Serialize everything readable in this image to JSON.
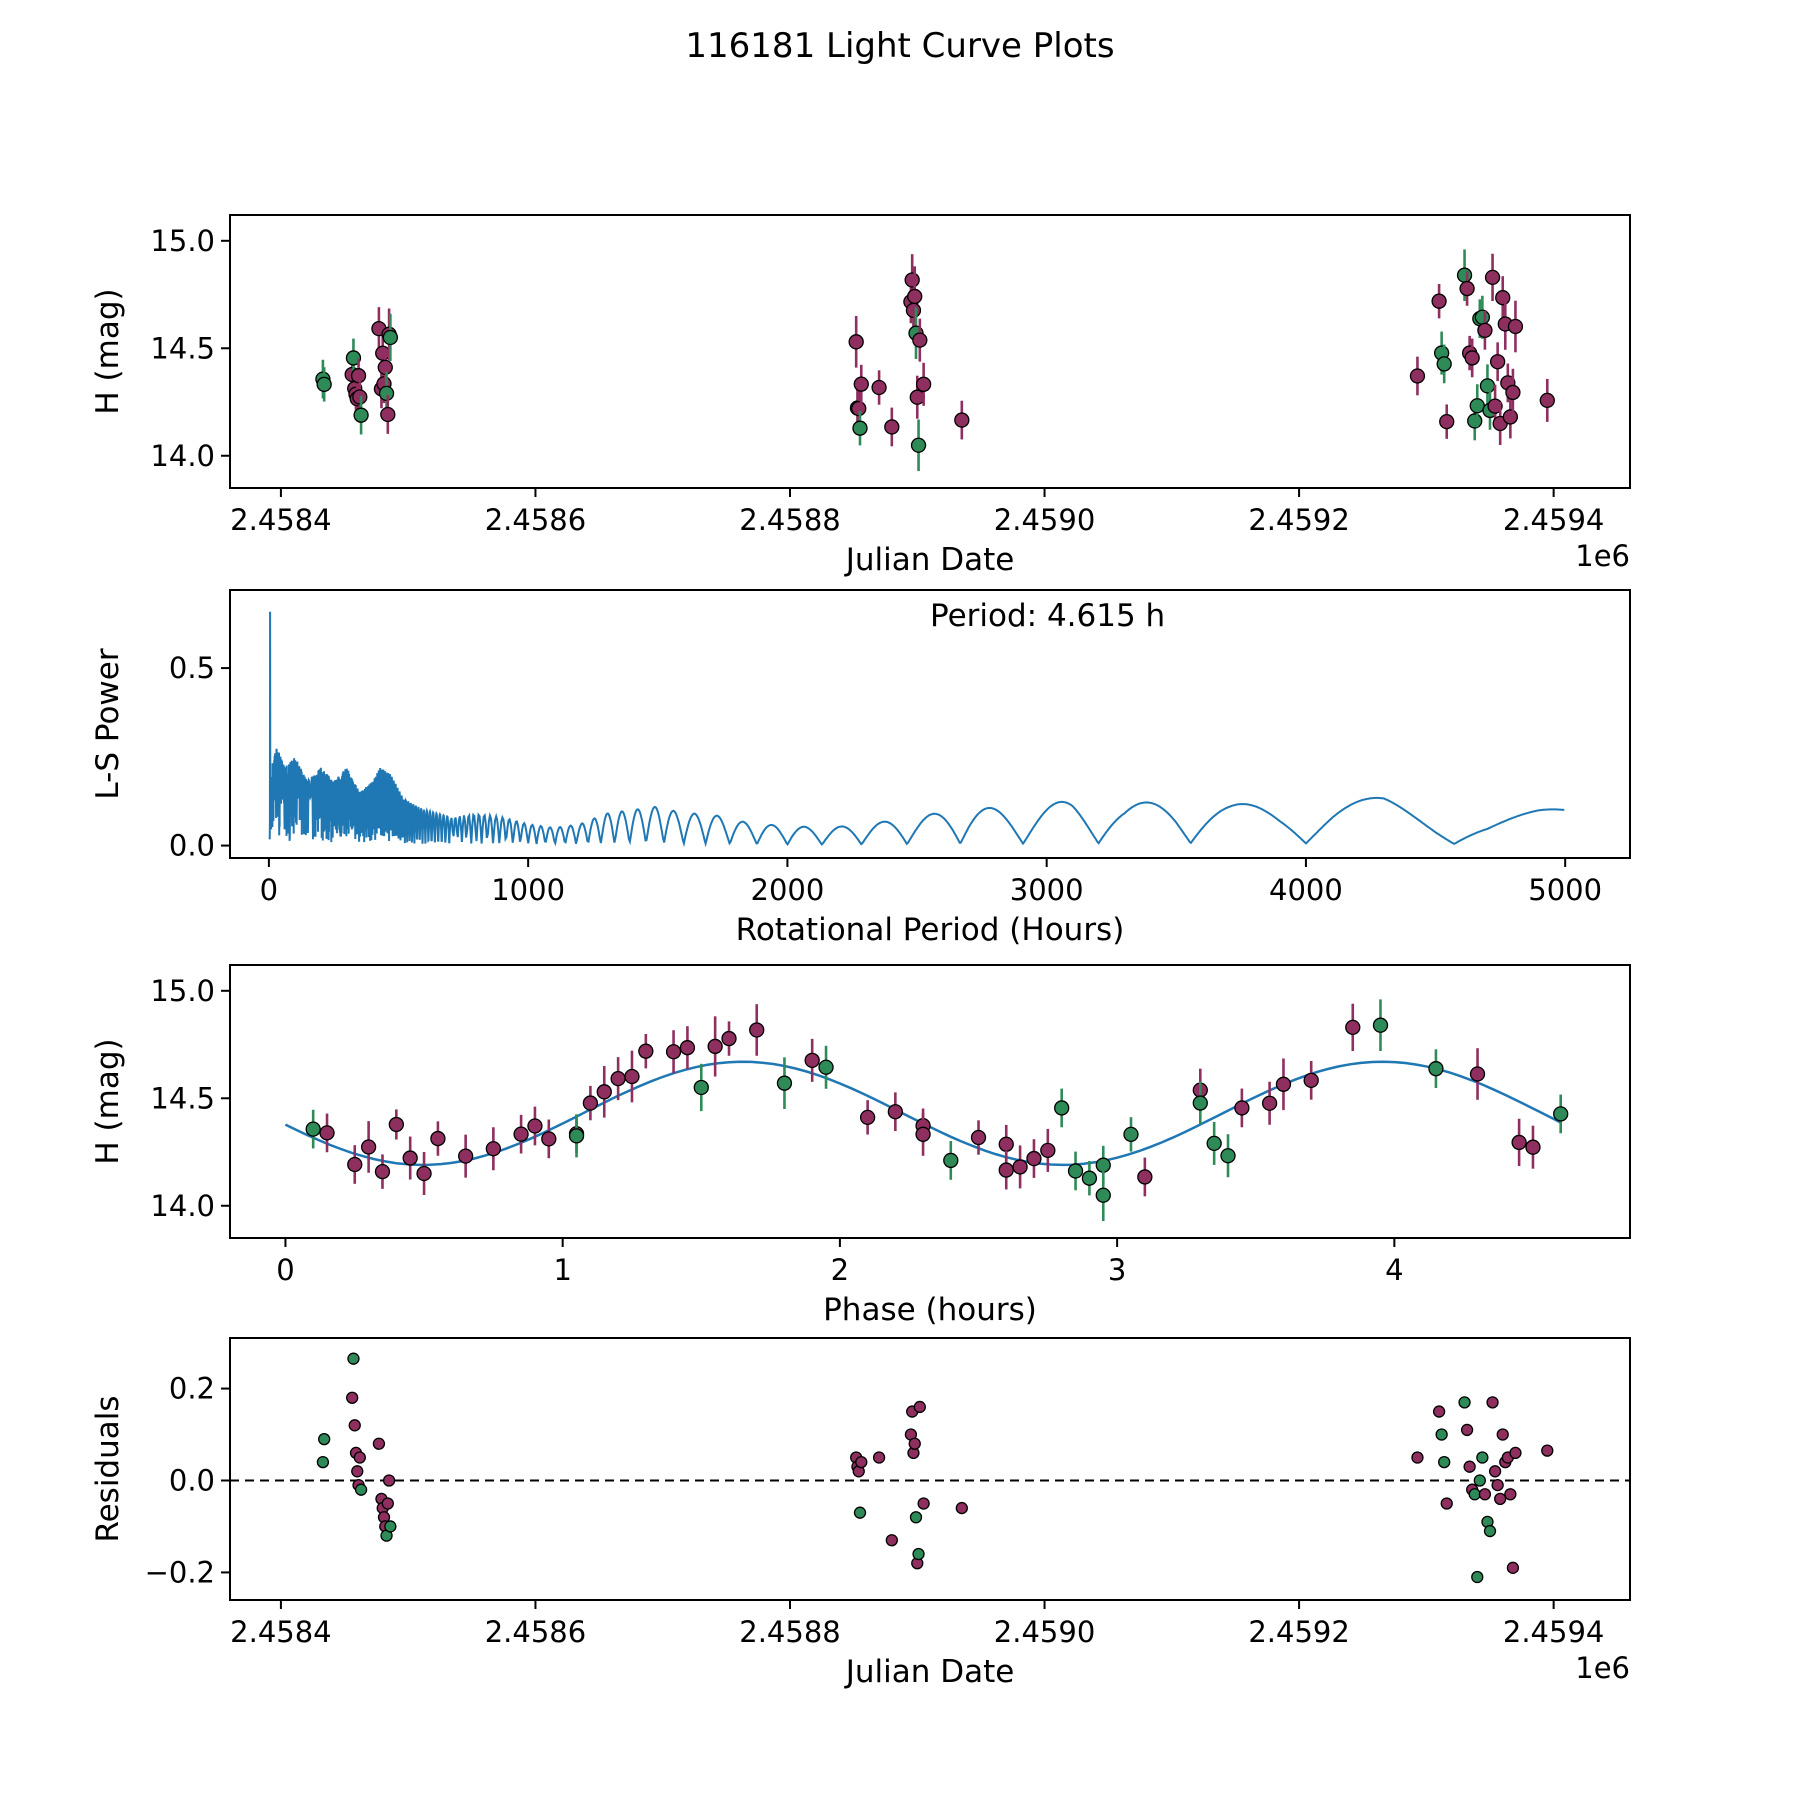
{
  "title": "116181 Light Curve Plots",
  "figure": {
    "colors": {
      "green": "#2e8b57",
      "maroon": "#8e2f5f",
      "line_blue": "#1f77b4",
      "marker_edge": "#000000",
      "axis": "#000000"
    }
  },
  "chart_data": [
    {
      "id": "lightcurve",
      "type": "scatter",
      "xlabel": "Julian Date",
      "ylabel": "H (mag)",
      "x_offset_label": "1e6",
      "xlim": [
        2458360,
        2459460
      ],
      "ylim": [
        13.85,
        15.12
      ],
      "xticks": {
        "values": [
          2458400,
          2458600,
          2458800,
          2459000,
          2459200,
          2459400
        ],
        "labels": [
          "2.4584",
          "2.4586",
          "2.4588",
          "2.4590",
          "2.4592",
          "2.4594"
        ]
      },
      "yticks": {
        "values": [
          14.0,
          14.5,
          15.0
        ],
        "labels": [
          "14.0",
          "14.5",
          "15.0"
        ]
      },
      "x_field": "jd",
      "y_field": "mag",
      "error_field": "err"
    },
    {
      "id": "periodogram",
      "type": "line",
      "xlabel": "Rotational Period (Hours)",
      "ylabel": "L-S Power",
      "annotation": "Period: 4.615 h",
      "xlim": [
        -150,
        5250
      ],
      "ylim": [
        -0.035,
        0.72
      ],
      "xticks": {
        "values": [
          0,
          1000,
          2000,
          3000,
          4000,
          5000
        ],
        "labels": [
          "0",
          "1000",
          "2000",
          "3000",
          "4000",
          "5000"
        ]
      },
      "yticks": {
        "values": [
          0.0,
          0.5
        ],
        "labels": [
          "0.0",
          "0.5"
        ]
      },
      "peak": {
        "period_hours": 4.615,
        "power": 0.67
      },
      "envelope": [
        [
          3,
          0.02
        ],
        [
          4,
          0.05
        ],
        [
          5,
          0.67
        ],
        [
          6,
          0.1
        ],
        [
          10,
          0.22
        ],
        [
          30,
          0.28
        ],
        [
          60,
          0.22
        ],
        [
          100,
          0.25
        ],
        [
          150,
          0.18
        ],
        [
          200,
          0.22
        ],
        [
          250,
          0.18
        ],
        [
          300,
          0.22
        ],
        [
          350,
          0.15
        ],
        [
          400,
          0.18
        ],
        [
          430,
          0.22
        ],
        [
          470,
          0.2
        ],
        [
          520,
          0.13
        ],
        [
          600,
          0.1
        ],
        [
          700,
          0.08
        ],
        [
          800,
          0.09
        ],
        [
          900,
          0.08
        ],
        [
          1000,
          0.06
        ],
        [
          1100,
          0.05
        ],
        [
          1200,
          0.06
        ],
        [
          1300,
          0.09
        ],
        [
          1400,
          0.1
        ],
        [
          1500,
          0.11
        ],
        [
          1600,
          0.09
        ],
        [
          1700,
          0.09
        ],
        [
          1800,
          0.07
        ],
        [
          1900,
          0.06
        ],
        [
          2000,
          0.055
        ],
        [
          2150,
          0.05
        ],
        [
          2300,
          0.06
        ],
        [
          2500,
          0.08
        ],
        [
          2700,
          0.11
        ],
        [
          2900,
          0.1
        ],
        [
          3100,
          0.13
        ],
        [
          3300,
          0.11
        ],
        [
          3500,
          0.14
        ],
        [
          3700,
          0.12
        ],
        [
          3900,
          0.11
        ],
        [
          4100,
          0.13
        ],
        [
          4300,
          0.135
        ],
        [
          4500,
          0.1
        ],
        [
          4700,
          0.08
        ],
        [
          4900,
          0.1
        ],
        [
          5000,
          0.105
        ]
      ],
      "oscillation": {
        "c": 16000,
        "phase": 0.0,
        "floor": 0.05
      }
    },
    {
      "id": "phase",
      "type": "scatter",
      "xlabel": "Phase (hours)",
      "ylabel": "H (mag)",
      "xlim": [
        -0.2,
        4.85
      ],
      "ylim": [
        13.85,
        15.12
      ],
      "xticks": {
        "values": [
          0,
          1,
          2,
          3,
          4
        ],
        "labels": [
          "0",
          "1",
          "2",
          "3",
          "4"
        ]
      },
      "yticks": {
        "values": [
          14.0,
          14.5,
          15.0
        ],
        "labels": [
          "14.0",
          "14.5",
          "15.0"
        ]
      },
      "x_field": "phase",
      "y_field": "mag",
      "error_field": "err",
      "fit": {
        "mean": 14.43,
        "amplitude": 0.24,
        "cycle_hours": 2.3075,
        "phase_at_mean_rising": 1.073,
        "period_hours": 4.615
      }
    },
    {
      "id": "residuals",
      "type": "scatter",
      "xlabel": "Julian Date",
      "ylabel": "Residuals",
      "x_offset_label": "1e6",
      "xlim": [
        2458360,
        2459460
      ],
      "ylim": [
        -0.26,
        0.31
      ],
      "xticks": {
        "values": [
          2458400,
          2458600,
          2458800,
          2459000,
          2459200,
          2459400
        ],
        "labels": [
          "2.4584",
          "2.4586",
          "2.4588",
          "2.4590",
          "2.4592",
          "2.4594"
        ]
      },
      "yticks": {
        "values": [
          -0.2,
          0.0,
          0.2
        ],
        "labels": [
          "−0.2",
          "0.0",
          "0.2"
        ]
      },
      "x_field": "jd",
      "y_field": "res",
      "zero_line": true
    }
  ],
  "observations": {
    "fields": [
      "jd",
      "phase_hours",
      "residual",
      "mag_error",
      "color_key"
    ],
    "color_map": {
      "g": "green",
      "m": "maroon"
    },
    "rows": [
      [
        2458433,
        0.1,
        0.04,
        0.09,
        "g"
      ],
      [
        2458434,
        3.05,
        0.09,
        0.08,
        "g"
      ],
      [
        2458456,
        0.4,
        0.18,
        0.07,
        "m"
      ],
      [
        2458457,
        2.8,
        0.265,
        0.09,
        "g"
      ],
      [
        2458458,
        0.55,
        0.12,
        0.08,
        "m"
      ],
      [
        2458459,
        2.6,
        0.06,
        0.09,
        "m"
      ],
      [
        2458460,
        0.75,
        0.02,
        0.1,
        "m"
      ],
      [
        2458461,
        2.3,
        -0.01,
        0.08,
        "m"
      ],
      [
        2458462,
        0.3,
        0.05,
        0.12,
        "m"
      ],
      [
        2458463,
        2.95,
        -0.02,
        0.09,
        "g"
      ],
      [
        2458477,
        1.2,
        0.08,
        0.1,
        "m"
      ],
      [
        2458479,
        0.95,
        -0.04,
        0.09,
        "m"
      ],
      [
        2458480,
        3.55,
        -0.06,
        0.1,
        "m"
      ],
      [
        2458481,
        1.05,
        -0.08,
        0.09,
        "m"
      ],
      [
        2458482,
        2.1,
        -0.1,
        0.08,
        "m"
      ],
      [
        2458483,
        3.35,
        -0.12,
        0.1,
        "g"
      ],
      [
        2458484,
        0.25,
        -0.05,
        0.09,
        "m"
      ],
      [
        2458485,
        3.6,
        0.0,
        0.12,
        "m"
      ],
      [
        2458486,
        1.5,
        -0.1,
        0.11,
        "g"
      ],
      [
        2458852,
        1.15,
        0.05,
        0.12,
        "m"
      ],
      [
        2458853,
        0.45,
        0.03,
        0.1,
        "m"
      ],
      [
        2458854,
        2.7,
        0.02,
        0.09,
        "m"
      ],
      [
        2458855,
        2.9,
        -0.07,
        0.08,
        "g"
      ],
      [
        2458856,
        0.85,
        0.04,
        0.09,
        "m"
      ],
      [
        2458870,
        2.5,
        0.05,
        0.08,
        "m"
      ],
      [
        2458880,
        3.1,
        -0.13,
        0.09,
        "m"
      ],
      [
        2458895,
        1.4,
        0.1,
        0.1,
        "m"
      ],
      [
        2458896,
        1.7,
        0.15,
        0.12,
        "m"
      ],
      [
        2458897,
        1.9,
        0.06,
        0.1,
        "m"
      ],
      [
        2458898,
        1.55,
        0.08,
        0.14,
        "m"
      ],
      [
        2458899,
        1.8,
        -0.08,
        0.12,
        "g"
      ],
      [
        2458900,
        4.5,
        -0.18,
        0.1,
        "m"
      ],
      [
        2458901,
        2.95,
        -0.16,
        0.12,
        "g"
      ],
      [
        2458902,
        3.3,
        0.16,
        0.1,
        "m"
      ],
      [
        2458905,
        2.3,
        -0.05,
        0.1,
        "m"
      ],
      [
        2458935,
        2.6,
        -0.06,
        0.09,
        "m"
      ],
      [
        2459293,
        0.9,
        0.05,
        0.09,
        "m"
      ],
      [
        2459310,
        1.3,
        0.15,
        0.08,
        "m"
      ],
      [
        2459312,
        3.3,
        0.1,
        0.1,
        "g"
      ],
      [
        2459314,
        4.6,
        0.04,
        0.09,
        "g"
      ],
      [
        2459316,
        0.35,
        -0.05,
        0.08,
        "m"
      ],
      [
        2459330,
        3.95,
        0.17,
        0.12,
        "g"
      ],
      [
        2459332,
        1.6,
        0.11,
        0.08,
        "m"
      ],
      [
        2459334,
        1.1,
        0.03,
        0.08,
        "m"
      ],
      [
        2459336,
        3.45,
        -0.02,
        0.09,
        "m"
      ],
      [
        2459338,
        2.85,
        -0.03,
        0.09,
        "g"
      ],
      [
        2459340,
        3.4,
        -0.21,
        0.1,
        "g"
      ],
      [
        2459342,
        4.15,
        0.0,
        0.09,
        "g"
      ],
      [
        2459344,
        1.95,
        0.05,
        0.1,
        "g"
      ],
      [
        2459346,
        3.7,
        -0.03,
        0.09,
        "m"
      ],
      [
        2459348,
        1.05,
        -0.09,
        0.1,
        "g"
      ],
      [
        2459350,
        2.4,
        -0.11,
        0.09,
        "g"
      ],
      [
        2459352,
        3.85,
        0.17,
        0.11,
        "m"
      ],
      [
        2459354,
        0.65,
        0.02,
        0.1,
        "m"
      ],
      [
        2459356,
        2.2,
        -0.01,
        0.09,
        "m"
      ],
      [
        2459358,
        0.5,
        -0.04,
        0.1,
        "m"
      ],
      [
        2459360,
        1.45,
        0.1,
        0.1,
        "m"
      ],
      [
        2459362,
        4.3,
        0.04,
        0.12,
        "m"
      ],
      [
        2459364,
        0.15,
        0.05,
        0.09,
        "m"
      ],
      [
        2459366,
        2.65,
        -0.03,
        0.1,
        "m"
      ],
      [
        2459368,
        4.45,
        -0.19,
        0.11,
        "m"
      ],
      [
        2459370,
        1.25,
        0.06,
        0.12,
        "m"
      ],
      [
        2459395,
        2.75,
        0.065,
        0.1,
        "m"
      ]
    ]
  }
}
